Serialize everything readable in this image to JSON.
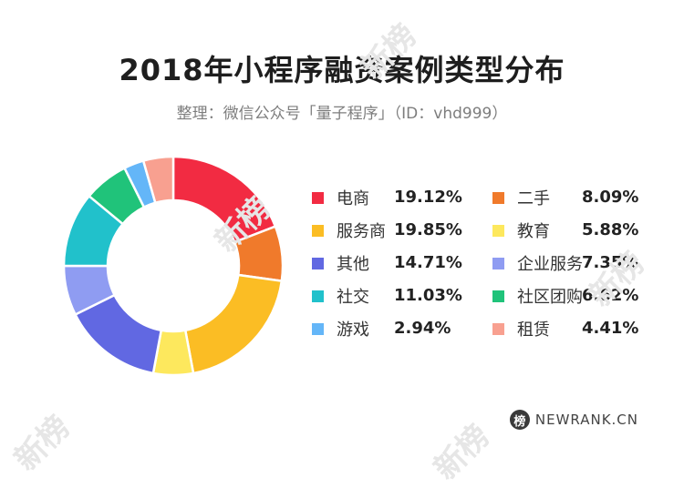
{
  "title": "2018年小程序融资案例类型分布",
  "subtitle": "整理：微信公众号「量子程序」（ID：vhd999）",
  "watermark_text": "新榜",
  "brand": {
    "icon_char": "榜",
    "text": "NEWRANK.CN"
  },
  "chart_data": {
    "type": "pie",
    "donut": true,
    "categories": [
      "电商",
      "二手",
      "服务商",
      "教育",
      "其他",
      "企业服务",
      "社交",
      "社区团购",
      "游戏",
      "租赁"
    ],
    "values": [
      19.12,
      8.09,
      19.85,
      5.88,
      14.71,
      7.35,
      11.03,
      6.62,
      2.94,
      4.41
    ],
    "value_labels": [
      "19.12%",
      "8.09%",
      "19.85%",
      "5.88%",
      "14.71%",
      "7.35%",
      "11.03%",
      "6.62%",
      "2.94%",
      "4.41%"
    ],
    "colors": [
      "#f22b42",
      "#f07a2b",
      "#fbbd24",
      "#fde85d",
      "#6168e2",
      "#8f9cf2",
      "#21c1cb",
      "#20c37a",
      "#64b6f8",
      "#f8a090"
    ],
    "legend_position": "right",
    "title": "2018年小程序融资案例类型分布"
  }
}
